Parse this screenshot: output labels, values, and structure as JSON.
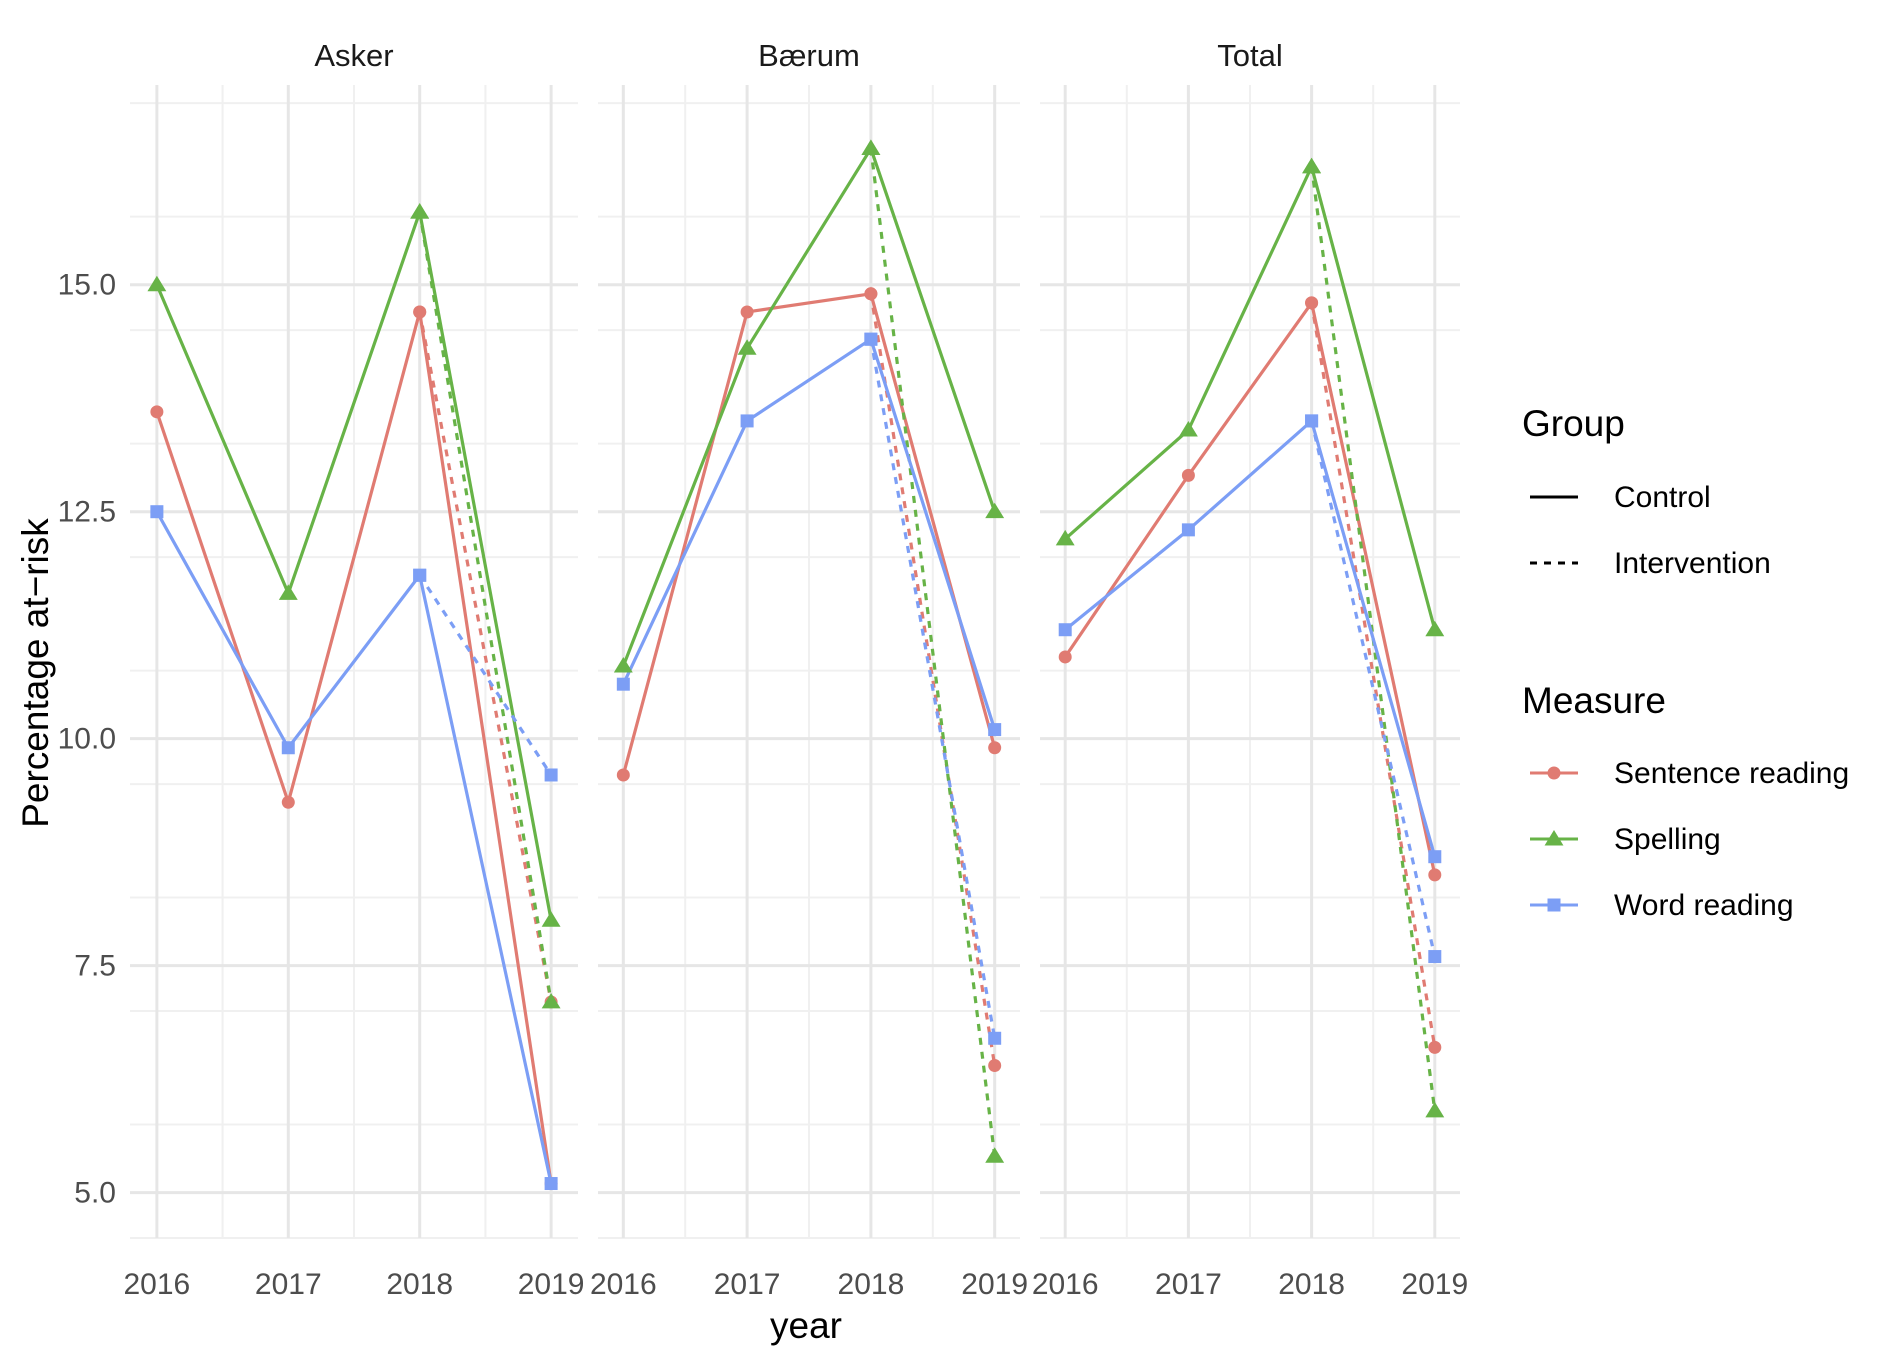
{
  "chart_data": {
    "type": "line",
    "xlabel": "year",
    "ylabel": "Percentage at−risk",
    "x": [
      "2016",
      "2017",
      "2018",
      "2019"
    ],
    "ylim": [
      4.5,
      17.2
    ],
    "yticks": [
      "5.0",
      "7.5",
      "10.0",
      "12.5",
      "15.0"
    ],
    "grid": true,
    "facets": [
      "Asker",
      "Bærum",
      "Total"
    ],
    "legend": {
      "position": "right",
      "group_title": "Group",
      "groups": [
        {
          "name": "Control",
          "linetype": "solid"
        },
        {
          "name": "Intervention",
          "linetype": "dashed"
        }
      ],
      "measure_title": "Measure",
      "measures": [
        {
          "name": "Sentence reading",
          "color": "#E07B72",
          "shape": "circle"
        },
        {
          "name": "Spelling",
          "color": "#67B347",
          "shape": "triangle"
        },
        {
          "name": "Word reading",
          "color": "#7C9EF5",
          "shape": "square"
        }
      ]
    },
    "panels": [
      {
        "facet": "Asker",
        "series": [
          {
            "measure": "Sentence reading",
            "group": "Control",
            "x": [
              "2016",
              "2017",
              "2018",
              "2019"
            ],
            "values": [
              13.6,
              9.3,
              14.7,
              5.1
            ]
          },
          {
            "measure": "Sentence reading",
            "group": "Intervention",
            "x": [
              "2018",
              "2019"
            ],
            "values": [
              14.7,
              7.1
            ]
          },
          {
            "measure": "Spelling",
            "group": "Control",
            "x": [
              "2016",
              "2017",
              "2018",
              "2019"
            ],
            "values": [
              15.0,
              11.6,
              15.8,
              8.0
            ]
          },
          {
            "measure": "Spelling",
            "group": "Intervention",
            "x": [
              "2018",
              "2019"
            ],
            "values": [
              15.8,
              7.1
            ]
          },
          {
            "measure": "Word reading",
            "group": "Control",
            "x": [
              "2016",
              "2017",
              "2018",
              "2019"
            ],
            "values": [
              12.5,
              9.9,
              11.8,
              5.1
            ]
          },
          {
            "measure": "Word reading",
            "group": "Intervention",
            "x": [
              "2018",
              "2019"
            ],
            "values": [
              11.8,
              9.6
            ]
          }
        ]
      },
      {
        "facet": "Bærum",
        "series": [
          {
            "measure": "Sentence reading",
            "group": "Control",
            "x": [
              "2016",
              "2017",
              "2018",
              "2019"
            ],
            "values": [
              9.6,
              14.7,
              14.9,
              9.9
            ]
          },
          {
            "measure": "Sentence reading",
            "group": "Intervention",
            "x": [
              "2018",
              "2019"
            ],
            "values": [
              14.9,
              6.4
            ]
          },
          {
            "measure": "Spelling",
            "group": "Control",
            "x": [
              "2016",
              "2017",
              "2018",
              "2019"
            ],
            "values": [
              10.8,
              14.3,
              16.5,
              12.5
            ]
          },
          {
            "measure": "Spelling",
            "group": "Intervention",
            "x": [
              "2018",
              "2019"
            ],
            "values": [
              16.5,
              5.4
            ]
          },
          {
            "measure": "Word reading",
            "group": "Control",
            "x": [
              "2016",
              "2017",
              "2018",
              "2019"
            ],
            "values": [
              10.6,
              13.5,
              14.4,
              10.1
            ]
          },
          {
            "measure": "Word reading",
            "group": "Intervention",
            "x": [
              "2018",
              "2019"
            ],
            "values": [
              14.4,
              6.7
            ]
          }
        ]
      },
      {
        "facet": "Total",
        "series": [
          {
            "measure": "Sentence reading",
            "group": "Control",
            "x": [
              "2016",
              "2017",
              "2018",
              "2019"
            ],
            "values": [
              10.9,
              12.9,
              14.8,
              8.5
            ]
          },
          {
            "measure": "Sentence reading",
            "group": "Intervention",
            "x": [
              "2018",
              "2019"
            ],
            "values": [
              14.8,
              6.6
            ]
          },
          {
            "measure": "Spelling",
            "group": "Control",
            "x": [
              "2016",
              "2017",
              "2018",
              "2019"
            ],
            "values": [
              12.2,
              13.4,
              16.3,
              11.2
            ]
          },
          {
            "measure": "Spelling",
            "group": "Intervention",
            "x": [
              "2018",
              "2019"
            ],
            "values": [
              16.3,
              5.9
            ]
          },
          {
            "measure": "Word reading",
            "group": "Control",
            "x": [
              "2016",
              "2017",
              "2018",
              "2019"
            ],
            "values": [
              11.2,
              12.3,
              13.5,
              8.7
            ]
          },
          {
            "measure": "Word reading",
            "group": "Intervention",
            "x": [
              "2018",
              "2019"
            ],
            "values": [
              13.5,
              7.6
            ]
          }
        ]
      }
    ]
  }
}
